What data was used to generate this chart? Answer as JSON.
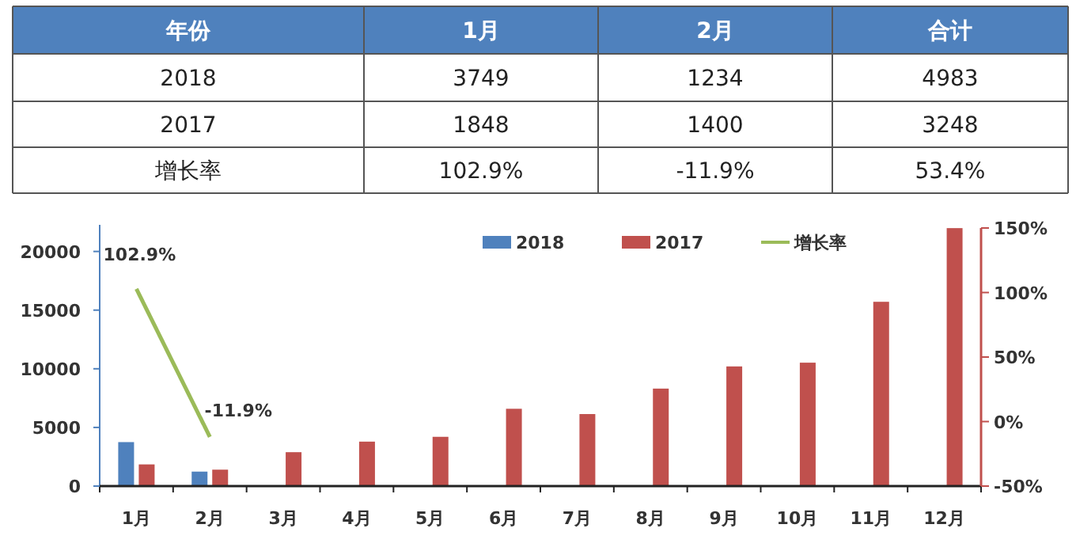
{
  "chart_data": [
    {
      "type": "other",
      "categories": [
        "年份",
        "1月",
        "2月",
        "合计"
      ],
      "y_categories": [
        "2018",
        "2017",
        "增长率"
      ],
      "cell_labels": [
        [
          "3749",
          "1234",
          "4983"
        ],
        [
          "1848",
          "1400",
          "3248"
        ],
        [
          "102.9%",
          "-11.9%",
          "53.4%"
        ]
      ]
    },
    {
      "type": "bar",
      "categories": [
        "1月",
        "2月",
        "3月",
        "4月",
        "5月",
        "6月",
        "7月",
        "8月",
        "9月",
        "10月",
        "11月",
        "12月"
      ],
      "series": [
        {
          "name": "2018",
          "color": "#4f81bd",
          "values": [
            3749,
            1234,
            null,
            null,
            null,
            null,
            null,
            null,
            null,
            null,
            null,
            null
          ]
        },
        {
          "name": "2017",
          "color": "#c0504d",
          "values": [
            1848,
            1400,
            2890,
            3790,
            4200,
            6590,
            6140,
            8310,
            10200,
            10520,
            15710,
            21990
          ]
        },
        {
          "name": "增长率",
          "type": "line",
          "axis": "y2",
          "color": "#9bbb59",
          "values": [
            102.9,
            -11.9,
            null,
            null,
            null,
            null,
            null,
            null,
            null,
            null,
            null,
            null
          ],
          "value_labels": [
            "102.9%",
            "-11.9%",
            null,
            null,
            null,
            null,
            null,
            null,
            null,
            null,
            null,
            null
          ]
        }
      ],
      "ylim": [
        0,
        22000
      ],
      "yticks": [
        0,
        5000,
        10000,
        15000,
        20000
      ],
      "y2lim": [
        -50,
        150
      ],
      "y2ticks": [
        {
          "value": -50,
          "label": "-50%"
        },
        {
          "value": 0,
          "label": "0%"
        },
        {
          "value": 50,
          "label": "50%"
        },
        {
          "value": 100,
          "label": "100%"
        },
        {
          "value": 150,
          "label": "150%"
        }
      ],
      "legend": "top",
      "grid": false,
      "marker": "none"
    }
  ]
}
